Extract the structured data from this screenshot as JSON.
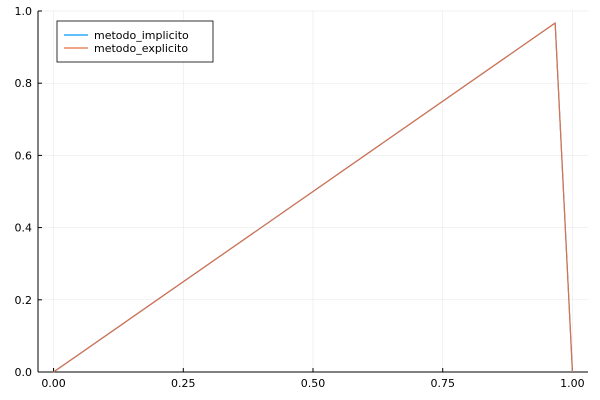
{
  "chart_data": {
    "type": "line",
    "title": "",
    "xlabel": "",
    "ylabel": "",
    "xlim": [
      -0.03,
      1.03
    ],
    "ylim": [
      0,
      1
    ],
    "grid": true,
    "legend_position": "top-left",
    "xticks": [
      "0.00",
      "0.25",
      "0.50",
      "0.75",
      "1.00"
    ],
    "yticks": [
      "0.0",
      "0.2",
      "0.4",
      "0.6",
      "0.8",
      "1.0"
    ],
    "series": [
      {
        "name": "metodo_implicito",
        "color": "#009AF9",
        "x": [
          0.0,
          0.9667,
          1.0
        ],
        "y": [
          0.0,
          0.9667,
          0.0
        ]
      },
      {
        "name": "metodo_explicito",
        "color": "#E26F46",
        "x": [
          0.0,
          0.9667,
          1.0
        ],
        "y": [
          0.0,
          0.9667,
          0.0
        ]
      }
    ]
  }
}
